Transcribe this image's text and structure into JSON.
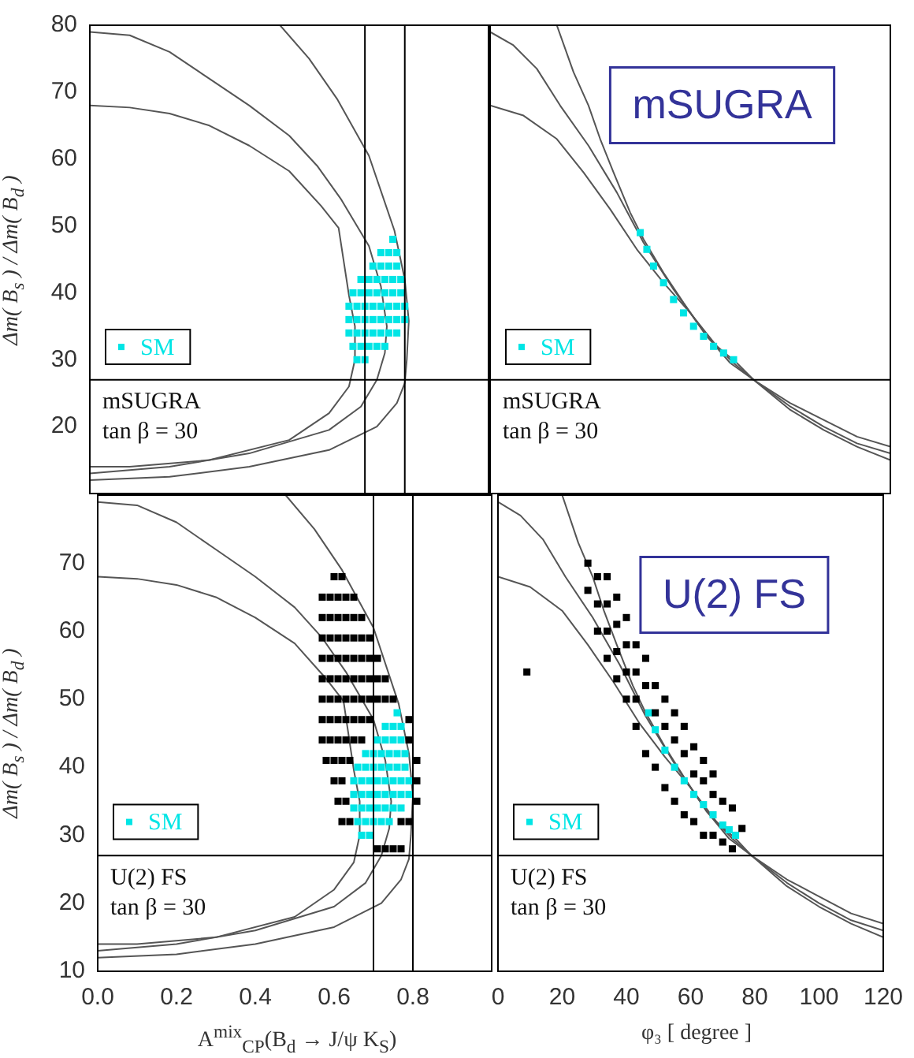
{
  "chart_data": [
    {
      "type": "scatter",
      "ylabel": "Δm( B$_{s}$ ) / Δm( B$_{d}$ )",
      "xlim": [
        0,
        1
      ],
      "ylim": [
        10,
        80
      ],
      "yticks": [
        20,
        30,
        40,
        50,
        60,
        70,
        80
      ],
      "tick_labels": "y",
      "legend": "bottom left",
      "marker": "square",
      "annotations": [
        "mSUGRA",
        "tan β = 30"
      ],
      "ref_lines": [
        {
          "axis": "y",
          "value": 27
        },
        {
          "axis": "x",
          "value": 0.69
        },
        {
          "axis": "x",
          "value": 0.79
        }
      ],
      "series": [
        {
          "type": "line",
          "marker": "none",
          "color": "#555555",
          "x": [
            0,
            0.1,
            0.2,
            0.3,
            0.4,
            0.5,
            0.57,
            0.63,
            0.7,
            0.73,
            0.745,
            0.74,
            0.72,
            0.68,
            0.6,
            0.4,
            0.2,
            0
          ],
          "values": [
            79,
            78.5,
            76,
            72,
            68,
            63.5,
            59,
            54,
            47,
            41,
            35,
            31,
            27,
            23,
            19.5,
            16,
            14,
            13
          ]
        },
        {
          "type": "line",
          "marker": "none",
          "color": "#555555",
          "x": [
            0,
            0.1,
            0.2,
            0.3,
            0.4,
            0.5,
            0.58,
            0.624,
            0.65,
            0.665,
            0.665,
            0.65,
            0.6,
            0.5,
            0.3,
            0.1,
            0
          ],
          "values": [
            68,
            67.7,
            66.8,
            65,
            62,
            58.2,
            53,
            49.7,
            39.6,
            35,
            30,
            26,
            22,
            18,
            15,
            14,
            14
          ]
        },
        {
          "type": "line",
          "marker": "none",
          "color": "#555555",
          "x": [
            0.477,
            0.55,
            0.62,
            0.7,
            0.764,
            0.79,
            0.8,
            0.795,
            0.79,
            0.77,
            0.72,
            0.6,
            0.4,
            0.2,
            0
          ],
          "values": [
            80,
            75,
            69,
            60.5,
            49.3,
            42,
            35.8,
            30,
            26.5,
            23.5,
            20,
            16.5,
            14,
            12.5,
            12
          ]
        },
        {
          "type": "scatter",
          "name": "SM",
          "color": "#00e5e5",
          "x": [
            0.67,
            0.69,
            0.66,
            0.68,
            0.7,
            0.72,
            0.74,
            0.65,
            0.67,
            0.69,
            0.71,
            0.73,
            0.75,
            0.77,
            0.65,
            0.67,
            0.69,
            0.71,
            0.73,
            0.75,
            0.77,
            0.79,
            0.65,
            0.67,
            0.69,
            0.71,
            0.73,
            0.75,
            0.77,
            0.79,
            0.66,
            0.68,
            0.7,
            0.72,
            0.74,
            0.76,
            0.78,
            0.68,
            0.7,
            0.72,
            0.74,
            0.76,
            0.78,
            0.71,
            0.73,
            0.75,
            0.77,
            0.73,
            0.75,
            0.77,
            0.76
          ],
          "values": [
            30,
            30,
            32,
            32,
            32,
            32,
            32,
            34,
            34,
            34,
            34,
            34,
            34,
            34,
            36,
            36,
            36,
            36,
            36,
            36,
            36,
            36,
            38,
            38,
            38,
            38,
            38,
            38,
            38,
            38,
            40,
            40,
            40,
            40,
            40,
            40,
            40,
            42,
            42,
            42,
            42,
            42,
            42,
            44,
            44,
            44,
            44,
            46,
            46,
            46,
            48
          ]
        }
      ]
    },
    {
      "type": "scatter",
      "title": "mSUGRA",
      "xlim": [
        0,
        120
      ],
      "ylim": [
        10,
        80
      ],
      "tick_labels": false,
      "legend": "bottom left",
      "marker": "square",
      "annotations": [
        "mSUGRA",
        "tan β = 30"
      ],
      "ref_lines": [
        {
          "axis": "y",
          "value": 27
        }
      ],
      "series": [
        {
          "type": "line",
          "marker": "none",
          "color": "#555555",
          "x": [
            0,
            7,
            14,
            21,
            29.5,
            38,
            46,
            55,
            65,
            73,
            79,
            90,
            100,
            110,
            120
          ],
          "values": [
            79,
            77,
            73.5,
            68,
            62,
            55,
            47.5,
            40.5,
            33.5,
            29.5,
            27,
            23,
            20,
            17.5,
            16
          ]
        },
        {
          "type": "line",
          "marker": "none",
          "color": "#555555",
          "x": [
            0,
            10,
            20,
            28,
            36,
            44,
            52,
            60,
            68,
            74,
            79,
            90,
            100,
            110,
            120
          ],
          "values": [
            68,
            66.5,
            63,
            58,
            52.5,
            46.5,
            41.5,
            37,
            32,
            29.5,
            27,
            23.5,
            21,
            18.5,
            17
          ]
        },
        {
          "type": "line",
          "marker": "none",
          "color": "#555555",
          "x": [
            20,
            25,
            29.5,
            33,
            37,
            42,
            46,
            52,
            58,
            65,
            72,
            79,
            90,
            100,
            110,
            120
          ],
          "values": [
            80,
            73,
            68,
            63,
            58,
            52,
            48,
            43,
            38.5,
            33.5,
            29.5,
            27,
            22.5,
            19.5,
            17,
            15
          ]
        },
        {
          "type": "scatter",
          "name": "SM",
          "color": "#00e5e5",
          "x": [
            45,
            47,
            49,
            52,
            55,
            58,
            61,
            64,
            67,
            70,
            73
          ],
          "values": [
            49,
            46.5,
            44,
            41.5,
            39,
            37,
            35,
            33.5,
            32,
            31,
            30
          ]
        }
      ]
    },
    {
      "type": "scatter",
      "xlabel": "A$^{mix}$$_{CP}$(B$_{d}$ → J/ψ K$_{S}$)",
      "ylabel": "Δm( B$_{s}$ ) / Δm( B$_{d}$ )",
      "xlim": [
        0,
        1
      ],
      "ylim": [
        10,
        80
      ],
      "xticks": [
        {
          "value": 0,
          "label": "0.0"
        },
        {
          "value": 0.2,
          "label": "0.2"
        },
        {
          "value": 0.4,
          "label": "0.4"
        },
        {
          "value": 0.6,
          "label": "0.6"
        },
        {
          "value": 0.8,
          "label": "0.8"
        }
      ],
      "yticks": [
        10,
        20,
        30,
        40,
        50,
        60,
        70
      ],
      "legend": "bottom left",
      "marker": "square",
      "annotations": [
        "U(2) FS",
        "tan β = 30"
      ],
      "ref_lines": [
        {
          "axis": "y",
          "value": 27
        },
        {
          "axis": "x",
          "value": 0.7
        },
        {
          "axis": "x",
          "value": 0.8
        }
      ],
      "series": [
        {
          "type": "line",
          "marker": "none",
          "color": "#555555",
          "x": [
            0,
            0.1,
            0.2,
            0.3,
            0.4,
            0.5,
            0.57,
            0.63,
            0.7,
            0.73,
            0.745,
            0.74,
            0.72,
            0.68,
            0.6,
            0.4,
            0.2,
            0
          ],
          "values": [
            79,
            78.5,
            76,
            72,
            68,
            63.5,
            59,
            54,
            47,
            41,
            35,
            31,
            27,
            23,
            19.5,
            16,
            14,
            13
          ]
        },
        {
          "type": "line",
          "marker": "none",
          "color": "#555555",
          "x": [
            0,
            0.1,
            0.2,
            0.3,
            0.4,
            0.5,
            0.58,
            0.624,
            0.65,
            0.665,
            0.665,
            0.65,
            0.6,
            0.5,
            0.3,
            0.1,
            0
          ],
          "values": [
            68,
            67.7,
            66.8,
            65,
            62,
            58.2,
            53,
            49.7,
            39.6,
            35,
            30,
            26,
            22,
            18,
            15,
            14,
            14
          ]
        },
        {
          "type": "line",
          "marker": "none",
          "color": "#555555",
          "x": [
            0.477,
            0.55,
            0.62,
            0.7,
            0.764,
            0.79,
            0.8,
            0.795,
            0.79,
            0.77,
            0.72,
            0.6,
            0.4,
            0.2,
            0
          ],
          "values": [
            80,
            75,
            69,
            60.5,
            49.3,
            42,
            35.8,
            30,
            26.5,
            23.5,
            20,
            16.5,
            14,
            12.5,
            12
          ]
        },
        {
          "type": "scatter",
          "color": "#000000",
          "x": [
            0.6,
            0.62,
            0.57,
            0.59,
            0.61,
            0.63,
            0.65,
            0.57,
            0.59,
            0.61,
            0.63,
            0.65,
            0.67,
            0.57,
            0.59,
            0.61,
            0.63,
            0.65,
            0.67,
            0.69,
            0.57,
            0.59,
            0.61,
            0.63,
            0.65,
            0.67,
            0.69,
            0.71,
            0.57,
            0.59,
            0.61,
            0.63,
            0.65,
            0.67,
            0.69,
            0.71,
            0.73,
            0.57,
            0.59,
            0.61,
            0.63,
            0.65,
            0.67,
            0.69,
            0.71,
            0.73,
            0.75,
            0.57,
            0.59,
            0.61,
            0.63,
            0.65,
            0.67,
            0.69,
            0.79,
            0.57,
            0.59,
            0.61,
            0.63,
            0.65,
            0.67,
            0.79,
            0.58,
            0.6,
            0.62,
            0.64,
            0.81,
            0.6,
            0.62,
            0.81,
            0.61,
            0.63,
            0.81,
            0.62,
            0.64,
            0.77,
            0.79,
            0.71,
            0.73,
            0.75,
            0.77
          ],
          "values": [
            68,
            68,
            65,
            65,
            65,
            65,
            65,
            62,
            62,
            62,
            62,
            62,
            62,
            59,
            59,
            59,
            59,
            59,
            59,
            59,
            56,
            56,
            56,
            56,
            56,
            56,
            56,
            56,
            53,
            53,
            53,
            53,
            53,
            53,
            53,
            53,
            53,
            50,
            50,
            50,
            50,
            50,
            50,
            50,
            50,
            50,
            50,
            47,
            47,
            47,
            47,
            47,
            47,
            47,
            47,
            44,
            44,
            44,
            44,
            44,
            44,
            44,
            41,
            41,
            41,
            41,
            41,
            38,
            38,
            38,
            35,
            35,
            35,
            32,
            32,
            32,
            32,
            28,
            28,
            28,
            28
          ]
        },
        {
          "type": "scatter",
          "name": "SM",
          "color": "#00e5e5",
          "x": [
            0.67,
            0.69,
            0.66,
            0.68,
            0.7,
            0.72,
            0.74,
            0.65,
            0.67,
            0.69,
            0.71,
            0.73,
            0.75,
            0.77,
            0.65,
            0.67,
            0.69,
            0.71,
            0.73,
            0.75,
            0.77,
            0.79,
            0.65,
            0.67,
            0.69,
            0.71,
            0.73,
            0.75,
            0.77,
            0.79,
            0.66,
            0.68,
            0.7,
            0.72,
            0.74,
            0.76,
            0.78,
            0.68,
            0.7,
            0.72,
            0.74,
            0.76,
            0.78,
            0.71,
            0.73,
            0.75,
            0.77,
            0.73,
            0.75,
            0.77,
            0.76
          ],
          "values": [
            30,
            30,
            32,
            32,
            32,
            32,
            32,
            34,
            34,
            34,
            34,
            34,
            34,
            34,
            36,
            36,
            36,
            36,
            36,
            36,
            36,
            36,
            38,
            38,
            38,
            38,
            38,
            38,
            38,
            38,
            40,
            40,
            40,
            40,
            40,
            40,
            40,
            42,
            42,
            42,
            42,
            42,
            42,
            44,
            44,
            44,
            44,
            46,
            46,
            46,
            48
          ]
        }
      ]
    },
    {
      "type": "scatter",
      "title": "U(2) FS",
      "xlabel": "φ₃ [ degree ]",
      "xlim": [
        0,
        120
      ],
      "ylim": [
        10,
        80
      ],
      "xticks": [
        0,
        20,
        40,
        60,
        80,
        100,
        120
      ],
      "tick_labels": "x",
      "legend": "bottom left",
      "marker": "square",
      "annotations": [
        "U(2) FS",
        "tan β = 30"
      ],
      "ref_lines": [
        {
          "axis": "y",
          "value": 27
        }
      ],
      "series": [
        {
          "type": "line",
          "marker": "none",
          "color": "#555555",
          "x": [
            0,
            7,
            14,
            21,
            29.5,
            38,
            46,
            55,
            65,
            73,
            79,
            90,
            100,
            110,
            120
          ],
          "values": [
            79,
            77,
            73.5,
            68,
            62,
            55,
            47.5,
            40.5,
            33.5,
            29.5,
            27,
            23,
            20,
            17.5,
            16
          ]
        },
        {
          "type": "line",
          "marker": "none",
          "color": "#555555",
          "x": [
            0,
            10,
            20,
            28,
            36,
            44,
            52,
            60,
            68,
            74,
            79,
            90,
            100,
            110,
            120
          ],
          "values": [
            68,
            66.5,
            63,
            58,
            52.5,
            46.5,
            41.5,
            37,
            32,
            29.5,
            27,
            23.5,
            21,
            18.5,
            17
          ]
        },
        {
          "type": "line",
          "marker": "none",
          "color": "#555555",
          "x": [
            20,
            25,
            29.5,
            33,
            37,
            42,
            46,
            52,
            58,
            65,
            72,
            79,
            90,
            100,
            110,
            120
          ],
          "values": [
            80,
            73,
            68,
            63,
            58,
            52,
            48,
            43,
            38.5,
            33.5,
            29.5,
            27,
            22.5,
            19.5,
            17,
            15
          ]
        },
        {
          "type": "scatter",
          "color": "#000000",
          "x": [
            28,
            28,
            31,
            31,
            31,
            34,
            34,
            34,
            34,
            37,
            37,
            37,
            37,
            40,
            40,
            40,
            40,
            43,
            43,
            43,
            43,
            46,
            46,
            46,
            49,
            49,
            49,
            52,
            52,
            52,
            55,
            55,
            55,
            58,
            58,
            58,
            61,
            61,
            61,
            64,
            64,
            64,
            67,
            67,
            67,
            70,
            70,
            73,
            73,
            76,
            9
          ],
          "values": [
            66,
            70,
            60,
            64,
            68,
            56,
            60,
            64,
            68,
            53,
            57,
            61,
            65,
            50,
            54,
            58,
            62,
            46,
            50,
            54,
            58,
            42,
            52,
            56,
            40,
            48,
            52,
            37,
            46,
            50,
            35,
            44,
            48,
            33,
            42,
            46,
            32,
            39,
            43,
            30,
            38,
            41,
            30,
            36,
            39,
            29,
            35,
            28,
            34,
            31,
            54
          ]
        },
        {
          "type": "scatter",
          "name": "SM",
          "color": "#00e5e5",
          "x": [
            47,
            49,
            52,
            55,
            58,
            61,
            64,
            67,
            70,
            72,
            74
          ],
          "values": [
            48,
            45.5,
            42.5,
            40,
            38,
            36,
            34.5,
            33,
            31.5,
            30.8,
            30
          ]
        }
      ]
    }
  ]
}
